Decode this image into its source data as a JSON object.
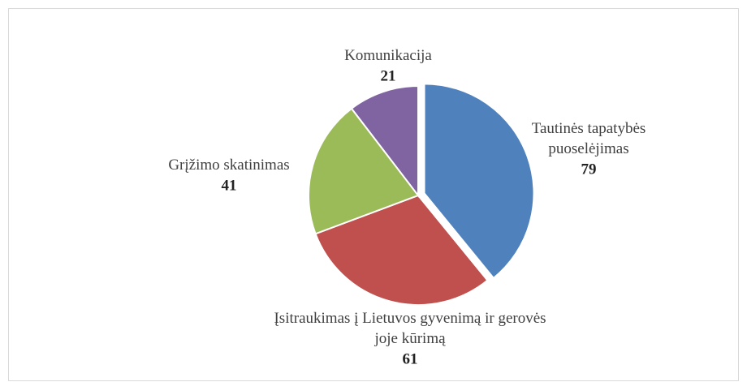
{
  "chart_data": {
    "type": "pie",
    "categories": [
      "Tautinės tapatybės puoselėjimas",
      "Įsitraukimas į Lietuvos gyvenimą ir gerovės joje kūrimą",
      "Grįžimo skatinimas",
      "Komunikacija"
    ],
    "values": [
      79,
      61,
      41,
      21
    ],
    "colors": [
      "#4f81bd",
      "#c0504d",
      "#9bbb59",
      "#8064a2"
    ]
  }
}
